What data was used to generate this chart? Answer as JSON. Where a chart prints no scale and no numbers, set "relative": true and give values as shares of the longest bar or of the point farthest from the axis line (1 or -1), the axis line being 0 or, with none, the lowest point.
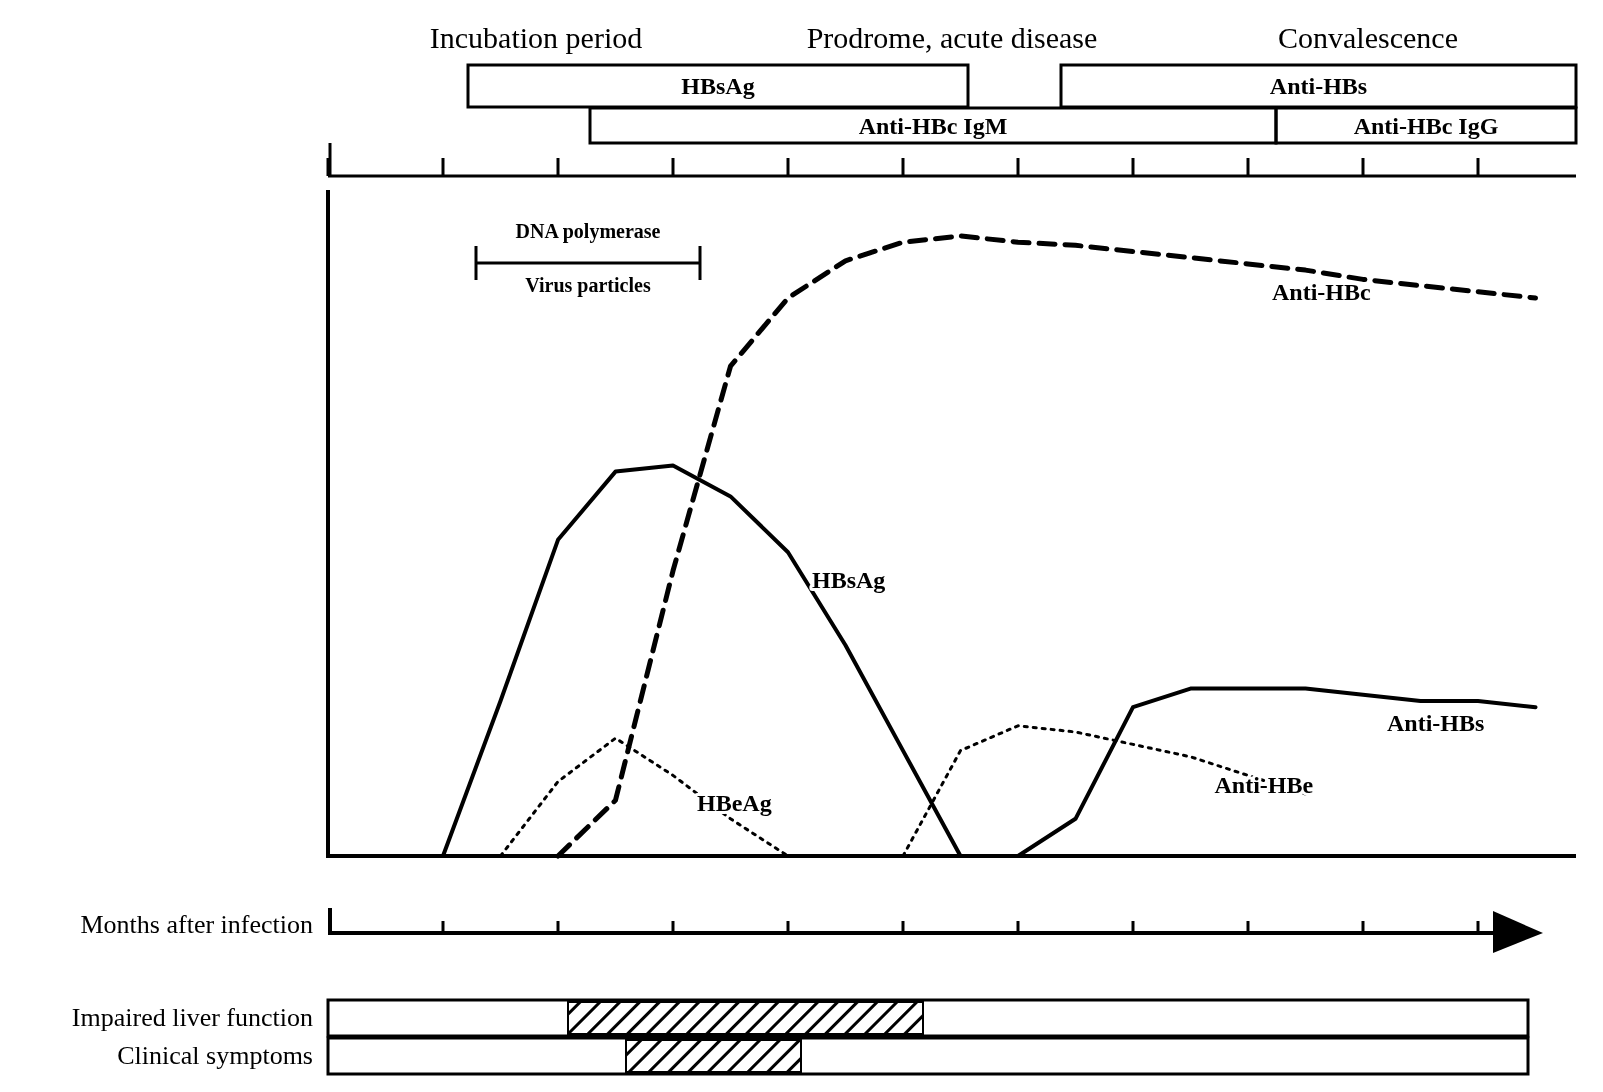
{
  "chart_data": {
    "type": "line",
    "relative": true,
    "xlabel": "Months after infection",
    "grid": false,
    "legend": false,
    "categories": [
      null,
      null,
      null,
      null,
      null,
      null,
      null,
      null,
      null,
      null,
      null,
      null,
      null,
      null,
      null,
      null,
      null,
      null,
      null,
      null,
      null,
      null
    ],
    "series": [
      {
        "name": "HBsAg",
        "color": "#000000",
        "line_style": "solid",
        "values": [
          null,
          null,
          0,
          0.25,
          0.51,
          0.62,
          0.63,
          0.58,
          0.49,
          0.34,
          0.17,
          0,
          null,
          null,
          null,
          null,
          null,
          null,
          null,
          null,
          null,
          null
        ]
      },
      {
        "name": "HBeAg",
        "color": "#000000",
        "line_style": "dotted",
        "values": [
          null,
          null,
          null,
          0,
          0.12,
          0.19,
          0.13,
          0.06,
          0,
          null,
          null,
          null,
          null,
          null,
          null,
          null,
          null,
          null,
          null,
          null,
          null,
          null
        ]
      },
      {
        "name": "Anti-HBc",
        "color": "#000000",
        "line_style": "dashed",
        "values": [
          null,
          null,
          null,
          null,
          0,
          0.09,
          0.46,
          0.79,
          0.9,
          0.96,
          0.99,
          1,
          0.99,
          0.985,
          0.975,
          0.965,
          0.955,
          0.945,
          0.93,
          0.92,
          0.91,
          0.9
        ]
      },
      {
        "name": "Anti-HBe",
        "color": "#000000",
        "line_style": "dotted",
        "values": [
          null,
          null,
          null,
          null,
          null,
          null,
          null,
          null,
          null,
          null,
          0,
          0.17,
          0.21,
          0.2,
          0.18,
          0.16,
          0.13,
          0.1,
          null,
          null,
          null,
          null
        ]
      },
      {
        "name": "Anti-HBs",
        "color": "#000000",
        "line_style": "solid",
        "values": [
          null,
          null,
          null,
          null,
          null,
          null,
          null,
          null,
          null,
          null,
          null,
          null,
          0,
          0.06,
          0.24,
          0.27,
          0.27,
          0.27,
          0.26,
          0.25,
          0.25,
          0.24
        ]
      }
    ],
    "annotations": [
      "Incubation period",
      "Prodrome, acute disease",
      "Convalescence",
      "HBsAg",
      "Anti-HBs",
      "Anti-HBc IgM",
      "Anti-HBc IgG",
      "DNA polymerase",
      "Virus particles",
      "Impaired liver function",
      "Clinical symptoms"
    ]
  }
}
